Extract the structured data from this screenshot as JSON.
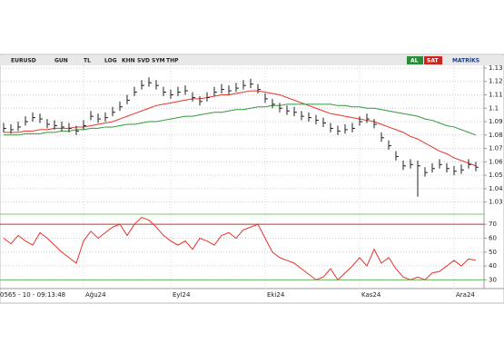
{
  "toolbar": {
    "symbol": "EURUSD",
    "buttons": [
      "GUN",
      "TL",
      "LOG",
      "KHN",
      "SVD",
      "SYM",
      "THP"
    ],
    "buy": "AL",
    "sell": "SAT",
    "brand": "MATRİKS"
  },
  "status": "0565 - 10 - 09:13:48",
  "chart_data": [
    {
      "type": "ohlc",
      "categories": [
        null,
        null,
        null,
        null,
        null,
        null,
        null,
        null,
        null,
        null,
        null,
        "Ağu24",
        null,
        null,
        null,
        null,
        null,
        null,
        null,
        null,
        null,
        null,
        null,
        "Eyl24",
        null,
        null,
        null,
        null,
        null,
        null,
        null,
        null,
        null,
        null,
        null,
        null,
        "Eki24",
        null,
        null,
        null,
        null,
        null,
        null,
        null,
        null,
        null,
        null,
        null,
        null,
        "Kas24",
        null,
        null,
        null,
        null,
        null,
        null,
        null,
        null,
        null,
        null,
        null,
        null,
        "Ara24",
        null,
        null,
        null
      ],
      "high": [
        1.089,
        1.088,
        1.09,
        1.094,
        1.097,
        1.096,
        1.092,
        1.091,
        1.09,
        1.089,
        1.087,
        1.091,
        1.098,
        1.096,
        1.097,
        1.101,
        1.105,
        1.11,
        1.116,
        1.121,
        1.123,
        1.121,
        1.116,
        1.114,
        1.116,
        1.117,
        1.112,
        1.109,
        1.112,
        1.116,
        1.118,
        1.117,
        1.119,
        1.121,
        1.122,
        1.118,
        1.111,
        1.107,
        1.104,
        1.102,
        1.101,
        1.098,
        1.097,
        1.095,
        1.093,
        1.089,
        1.087,
        1.088,
        1.089,
        1.094,
        1.096,
        1.092,
        1.082,
        1.076,
        1.068,
        1.061,
        1.062,
        1.061,
        1.056,
        1.059,
        1.062,
        1.059,
        1.057,
        1.058,
        1.062,
        1.06
      ],
      "low": [
        1.082,
        1.081,
        1.083,
        1.087,
        1.09,
        1.089,
        1.085,
        1.084,
        1.083,
        1.082,
        1.08,
        1.084,
        1.091,
        1.089,
        1.09,
        1.094,
        1.098,
        1.103,
        1.109,
        1.114,
        1.116,
        1.114,
        1.109,
        1.107,
        1.109,
        1.11,
        1.105,
        1.102,
        1.105,
        1.109,
        1.111,
        1.11,
        1.112,
        1.114,
        1.115,
        1.111,
        1.104,
        1.1,
        1.097,
        1.095,
        1.094,
        1.091,
        1.09,
        1.088,
        1.086,
        1.082,
        1.08,
        1.081,
        1.082,
        1.087,
        1.089,
        1.085,
        1.075,
        1.069,
        1.061,
        1.054,
        1.055,
        1.034,
        1.049,
        1.052,
        1.055,
        1.052,
        1.05,
        1.051,
        1.055,
        1.053
      ],
      "close": [
        1.085,
        1.084,
        1.086,
        1.09,
        1.093,
        1.092,
        1.088,
        1.087,
        1.086,
        1.085,
        1.083,
        1.087,
        1.094,
        1.092,
        1.093,
        1.097,
        1.101,
        1.106,
        1.112,
        1.117,
        1.119,
        1.117,
        1.112,
        1.11,
        1.112,
        1.113,
        1.108,
        1.105,
        1.108,
        1.112,
        1.114,
        1.113,
        1.115,
        1.117,
        1.118,
        1.114,
        1.107,
        1.103,
        1.1,
        1.098,
        1.097,
        1.094,
        1.093,
        1.091,
        1.089,
        1.085,
        1.083,
        1.084,
        1.085,
        1.09,
        1.092,
        1.088,
        1.078,
        1.072,
        1.064,
        1.057,
        1.058,
        1.057,
        1.052,
        1.055,
        1.058,
        1.055,
        1.053,
        1.054,
        1.058,
        1.056
      ],
      "color": "#222222",
      "series": [
        {
          "color": "#e8332a",
          "values": [
            1.082,
            1.082,
            1.082,
            1.083,
            1.083,
            1.084,
            1.084,
            1.085,
            1.085,
            1.085,
            1.086,
            1.086,
            1.087,
            1.088,
            1.089,
            1.09,
            1.092,
            1.094,
            1.096,
            1.098,
            1.1,
            1.102,
            1.103,
            1.104,
            1.105,
            1.106,
            1.107,
            1.107,
            1.108,
            1.109,
            1.11,
            1.11,
            1.111,
            1.112,
            1.113,
            1.113,
            1.112,
            1.111,
            1.11,
            1.108,
            1.106,
            1.104,
            1.102,
            1.1,
            1.098,
            1.096,
            1.095,
            1.094,
            1.093,
            1.092,
            1.091,
            1.09,
            1.088,
            1.086,
            1.084,
            1.082,
            1.079,
            1.077,
            1.074,
            1.071,
            1.068,
            1.066,
            1.063,
            1.061,
            1.059,
            1.057
          ]
        },
        {
          "color": "#2e9a3a",
          "values": [
            1.08,
            1.08,
            1.08,
            1.081,
            1.081,
            1.081,
            1.082,
            1.082,
            1.083,
            1.083,
            1.084,
            1.084,
            1.085,
            1.085,
            1.086,
            1.086,
            1.087,
            1.088,
            1.088,
            1.089,
            1.09,
            1.09,
            1.091,
            1.092,
            1.093,
            1.094,
            1.094,
            1.095,
            1.096,
            1.097,
            1.097,
            1.098,
            1.099,
            1.099,
            1.1,
            1.101,
            1.101,
            1.102,
            1.102,
            1.103,
            1.103,
            1.103,
            1.103,
            1.103,
            1.103,
            1.103,
            1.102,
            1.102,
            1.101,
            1.101,
            1.1,
            1.1,
            1.099,
            1.098,
            1.097,
            1.096,
            1.095,
            1.094,
            1.092,
            1.091,
            1.089,
            1.087,
            1.086,
            1.084,
            1.082,
            1.08
          ]
        }
      ],
      "ylim": [
        1.023,
        1.132
      ],
      "yticks": [
        1.03,
        1.04,
        1.05,
        1.06,
        1.07,
        1.08,
        1.09,
        1.1,
        1.11,
        1.12,
        1.13
      ],
      "grid": true
    },
    {
      "type": "line",
      "color": "#e8332a",
      "values": [
        60,
        56,
        62,
        58,
        55,
        64,
        60,
        55,
        50,
        46,
        42,
        58,
        65,
        60,
        64,
        68,
        70,
        62,
        70,
        75,
        73,
        68,
        62,
        58,
        55,
        58,
        52,
        60,
        58,
        55,
        62,
        64,
        60,
        66,
        68,
        70,
        60,
        50,
        46,
        44,
        42,
        38,
        34,
        30,
        32,
        38,
        30,
        35,
        40,
        46,
        40,
        52,
        42,
        46,
        38,
        32,
        30,
        32,
        30,
        35,
        36,
        40,
        44,
        40,
        45,
        44
      ],
      "levels": [
        70,
        30
      ],
      "ylim": [
        25,
        76
      ],
      "yticks": [
        30,
        40,
        50,
        60,
        70
      ],
      "grid": true
    }
  ]
}
